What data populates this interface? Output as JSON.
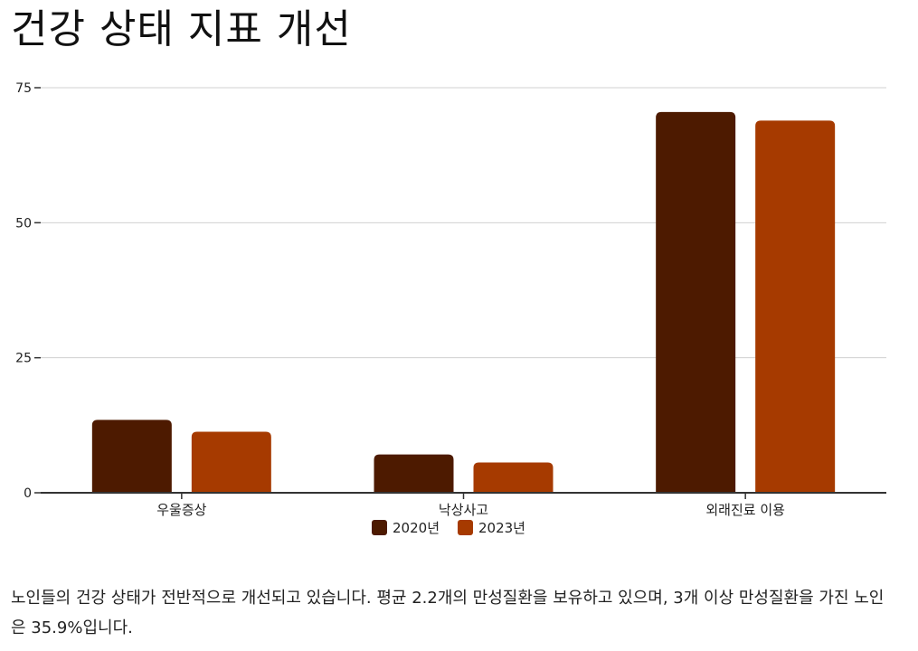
{
  "page_title": "건강 상태 지표 개선",
  "description": "노인들의 건강 상태가 전반적으로 개선되고 있습니다. 평균 2.2개의 만성질환을 보유하고 있으며, 3개 이상 만성질환을 가진 노인은 35.9%입니다.",
  "chart_data": {
    "type": "bar",
    "title": "",
    "xlabel": "",
    "ylabel": "",
    "categories": [
      "우울증상",
      "낙상사고",
      "외래진료 이용"
    ],
    "series": [
      {
        "name": "2020년",
        "values": [
          13.5,
          7.1,
          70.5
        ],
        "color": "#4d1a00"
      },
      {
        "name": "2023년",
        "values": [
          11.3,
          5.6,
          68.9
        ],
        "color": "#a63a00"
      }
    ],
    "ylim": [
      0,
      75
    ],
    "yticks": [
      0,
      25,
      50,
      75
    ],
    "grid": true,
    "legend_position": "bottom-center"
  }
}
